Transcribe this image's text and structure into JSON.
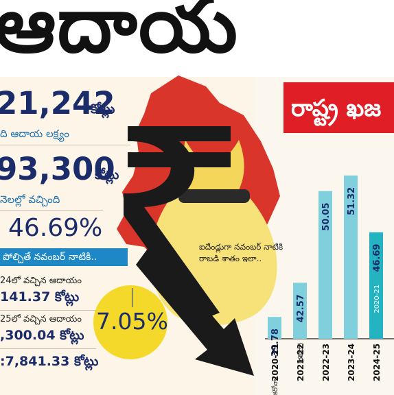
{
  "headline": {
    "text": "ఆదాయ"
  },
  "summary": {
    "target_value": "21,242",
    "target_unit": "కోట్లు",
    "target_label": "ది ఆదాయ లక్ష్యం",
    "received_value": "93,300",
    "received_unit": "కోట్లు",
    "received_label": "నెలల్లో వచ్చింది",
    "percent": "46.69%"
  },
  "banner": {
    "text": "పోల్చితే నవంబర్ నాటికి.."
  },
  "rows": [
    {
      "label": "24లో వచ్చిన ఆదాయం",
      "value": "141.37 కోట్లు"
    },
    {
      "label": "25లో వచ్చిన ఆదాయం",
      "value": ",300.04 కోట్లు"
    },
    {
      "label": "",
      "value": ":7,841.33 కోట్లు"
    }
  ],
  "growth": {
    "percent": "7.05%"
  },
  "red_box": {
    "text": "రాష్ట్ర ఖజ"
  },
  "chart_caption": {
    "line1": "ఐదేండ్లుగా నవంబర్ నాటికి",
    "line2": "రాబడి శాతం ఇలా.."
  },
  "colors": {
    "bar": "#7fd0dc",
    "bar_highlight": "#23b3c1",
    "accent_red": "#e01e26",
    "banner_blue": "#1e88c7",
    "yellow": "#f5d92a",
    "map_red": "#d9352b"
  },
  "icons": [
    "rupee-icon",
    "money-bag-icon",
    "down-arrow-icon",
    "telangana-map-icon"
  ],
  "chart_data": {
    "type": "bar",
    "categories": [
      "2020-21",
      "2021-22",
      "2022-23",
      "2023-24",
      "2024-25"
    ],
    "values": [
      39.78,
      42.57,
      50.05,
      51.32,
      46.69
    ],
    "bar_labels": [
      "39.78",
      "42.57",
      "50.05",
      "51.32",
      "46.69"
    ],
    "bar_sublabels": [
      "(కరోనా)",
      "(కరోనా)",
      "",
      "",
      "2020-21"
    ],
    "highlight_index": 4,
    "ylim": [
      38,
      54
    ],
    "title": "",
    "xlabel": "",
    "ylabel": ""
  }
}
